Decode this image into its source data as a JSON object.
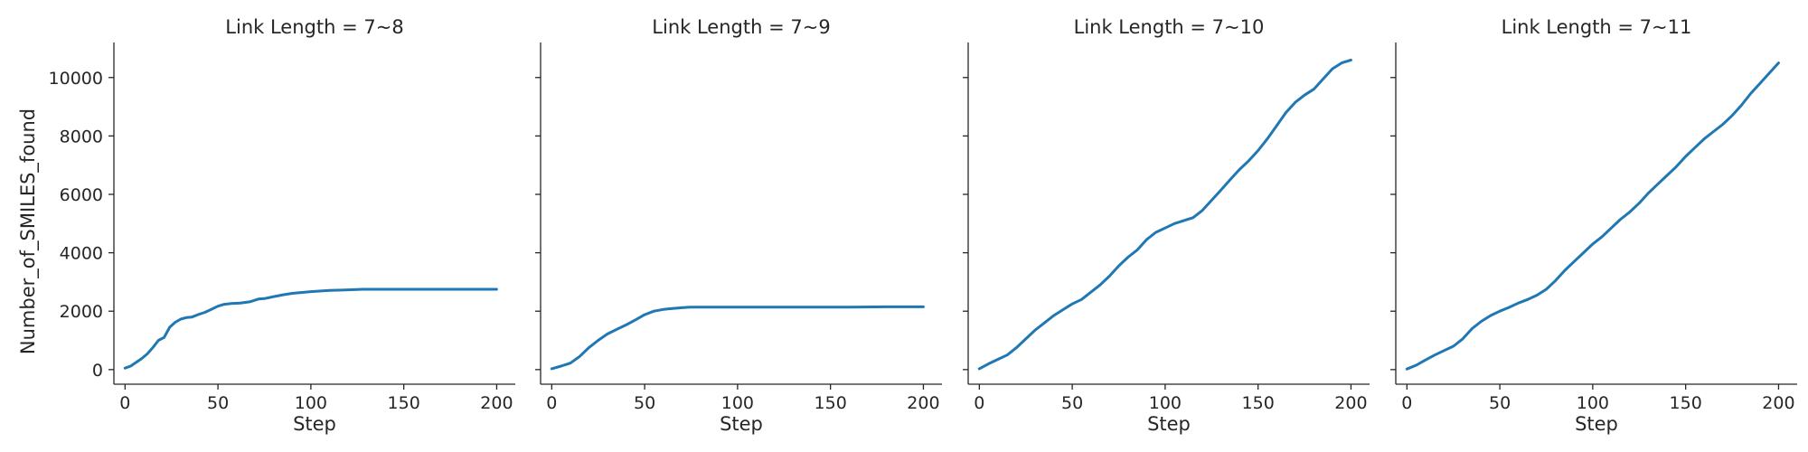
{
  "figure": {
    "ylabel": "Number_of_SMILES_found",
    "xlabel": "Step",
    "line_color": "#1f77b4"
  },
  "chart_data": [
    {
      "type": "line",
      "title": "Link Length = 7~8",
      "xlabel": "Step",
      "ylabel": "Number_of_SMILES_found",
      "xlim": [
        -6,
        210
      ],
      "ylim": [
        -500,
        11200
      ],
      "xticks": [
        0,
        50,
        100,
        150,
        200
      ],
      "yticks": [
        0,
        2000,
        4000,
        6000,
        8000,
        10000
      ],
      "grid": false,
      "series": [
        {
          "x": [
            0,
            3,
            6,
            9,
            12,
            15,
            18,
            21,
            24,
            27,
            30,
            33,
            36,
            40,
            43,
            46,
            50,
            53,
            57,
            62,
            67,
            72,
            75,
            80,
            85,
            90,
            100,
            110,
            120,
            128,
            140,
            160,
            180,
            200
          ],
          "values": [
            50,
            120,
            250,
            380,
            540,
            760,
            1000,
            1100,
            1450,
            1620,
            1730,
            1780,
            1800,
            1900,
            1960,
            2050,
            2170,
            2230,
            2260,
            2280,
            2320,
            2420,
            2430,
            2500,
            2560,
            2610,
            2670,
            2710,
            2730,
            2750,
            2750,
            2750,
            2750,
            2750
          ]
        }
      ]
    },
    {
      "type": "line",
      "title": "Link Length = 7~9",
      "xlabel": "Step",
      "ylabel": "",
      "xlim": [
        -6,
        210
      ],
      "ylim": [
        -500,
        11200
      ],
      "xticks": [
        0,
        50,
        100,
        150,
        200
      ],
      "yticks": [
        0,
        2000,
        4000,
        6000,
        8000,
        10000
      ],
      "grid": false,
      "series": [
        {
          "x": [
            0,
            5,
            10,
            15,
            20,
            25,
            30,
            35,
            40,
            45,
            50,
            55,
            60,
            65,
            70,
            75,
            80,
            100,
            120,
            140,
            160,
            180,
            200
          ],
          "values": [
            30,
            120,
            220,
            450,
            750,
            1000,
            1220,
            1380,
            1530,
            1700,
            1880,
            2000,
            2060,
            2090,
            2120,
            2140,
            2140,
            2140,
            2140,
            2140,
            2140,
            2150,
            2150
          ]
        }
      ]
    },
    {
      "type": "line",
      "title": "Link Length = 7~10",
      "xlabel": "Step",
      "ylabel": "",
      "xlim": [
        -6,
        210
      ],
      "ylim": [
        -500,
        11200
      ],
      "xticks": [
        0,
        50,
        100,
        150,
        200
      ],
      "yticks": [
        0,
        2000,
        4000,
        6000,
        8000,
        10000
      ],
      "grid": false,
      "series": [
        {
          "x": [
            0,
            5,
            10,
            15,
            20,
            25,
            30,
            35,
            40,
            45,
            50,
            55,
            60,
            65,
            70,
            75,
            80,
            85,
            90,
            95,
            100,
            105,
            110,
            115,
            120,
            125,
            130,
            135,
            140,
            145,
            150,
            155,
            160,
            165,
            170,
            175,
            180,
            185,
            190,
            195,
            200
          ],
          "values": [
            30,
            200,
            350,
            500,
            750,
            1050,
            1350,
            1600,
            1850,
            2050,
            2250,
            2400,
            2650,
            2900,
            3200,
            3550,
            3850,
            4100,
            4450,
            4700,
            4850,
            5000,
            5100,
            5200,
            5450,
            5800,
            6150,
            6500,
            6850,
            7150,
            7500,
            7900,
            8350,
            8800,
            9150,
            9400,
            9600,
            9950,
            10300,
            10500,
            10600
          ]
        }
      ]
    },
    {
      "type": "line",
      "title": "Link Length = 7~11",
      "xlabel": "Step",
      "ylabel": "",
      "xlim": [
        -6,
        210
      ],
      "ylim": [
        -500,
        11200
      ],
      "xticks": [
        0,
        50,
        100,
        150,
        200
      ],
      "yticks": [
        0,
        2000,
        4000,
        6000,
        8000,
        10000
      ],
      "grid": false,
      "series": [
        {
          "x": [
            0,
            5,
            10,
            15,
            20,
            25,
            30,
            35,
            40,
            45,
            50,
            55,
            60,
            65,
            70,
            75,
            80,
            85,
            90,
            95,
            100,
            105,
            110,
            115,
            120,
            125,
            130,
            135,
            140,
            145,
            150,
            155,
            160,
            165,
            170,
            175,
            180,
            185,
            190,
            195,
            200
          ],
          "values": [
            20,
            150,
            330,
            500,
            650,
            800,
            1050,
            1400,
            1650,
            1850,
            2000,
            2130,
            2280,
            2400,
            2550,
            2750,
            3050,
            3400,
            3700,
            4000,
            4300,
            4550,
            4850,
            5150,
            5400,
            5700,
            6050,
            6350,
            6650,
            6950,
            7300,
            7600,
            7900,
            8150,
            8400,
            8700,
            9050,
            9450,
            9800,
            10150,
            10500
          ]
        }
      ]
    }
  ]
}
